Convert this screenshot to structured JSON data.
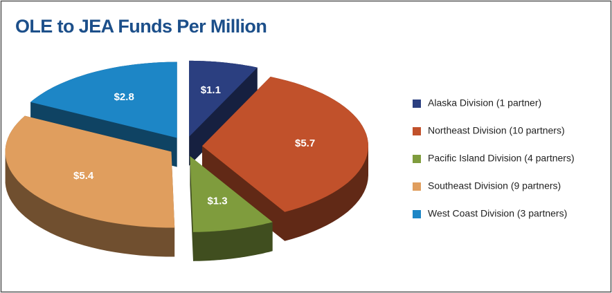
{
  "chart_data": {
    "type": "pie",
    "title": "OLE to JEA Funds Per Million",
    "categories": [
      "Alaska Division (1 partner)",
      "Northeast Division (10 partners)",
      "Pacific Island Division (4 partners)",
      "Southeast Division (9 partners)",
      "West Coast Division (3 partners)"
    ],
    "values": [
      1.1,
      5.7,
      1.3,
      5.4,
      2.8
    ],
    "value_labels": [
      "$1.1",
      "$5.7",
      "$1.3",
      "$5.4",
      "$2.8"
    ],
    "colors": [
      "#2b3f80",
      "#c1512b",
      "#7f9c3d",
      "#e09e5e",
      "#1d86c6"
    ],
    "legend": "right"
  }
}
